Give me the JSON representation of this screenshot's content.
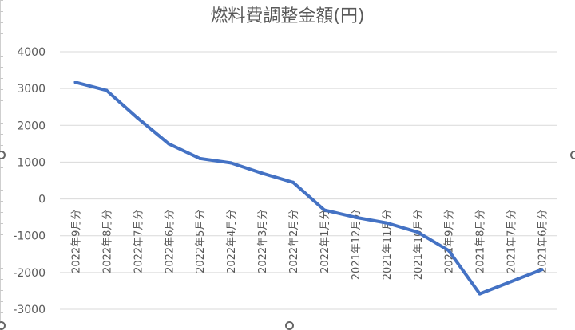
{
  "chart_data": {
    "type": "line",
    "title": "燃料費調整金額(円)",
    "xlabel": "",
    "ylabel": "",
    "categories": [
      "2022年9月分",
      "2022年8月分",
      "2022年7月分",
      "2022年6月分",
      "2022年5月分",
      "2022年4月分",
      "2022年3月分",
      "2022年2月分",
      "2022年1月分",
      "2021年12月分",
      "2021年11月分",
      "2021年10月分",
      "2021年9月分",
      "2021年8月分",
      "2021年7月分",
      "2021年6月分"
    ],
    "series": [
      {
        "values": [
          3170,
          2950,
          2200,
          1500,
          1100,
          980,
          700,
          450,
          -300,
          -500,
          -650,
          -900,
          -1400,
          -2580,
          -2250,
          -1920
        ]
      }
    ],
    "ylim": [
      -3000,
      4000
    ],
    "yticks": [
      4000,
      3000,
      2000,
      1000,
      0,
      -1000,
      -2000,
      -3000
    ],
    "grid": true,
    "legend": "none",
    "colors": {
      "line": "#4472c4",
      "grid": "#d9d9d9",
      "text": "#595959"
    }
  }
}
